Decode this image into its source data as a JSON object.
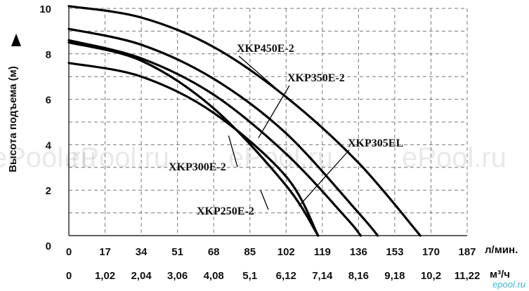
{
  "chart_data": {
    "type": "line",
    "title": "",
    "ylabel": "Высота подъема (м)",
    "xlabel": "",
    "x_unit_primary": "л/мин.",
    "x_unit_secondary": "м³/ч",
    "xlim": [
      0,
      187
    ],
    "ylim": [
      0,
      10
    ],
    "y_ticks": [
      "0",
      "2",
      "4",
      "6",
      "8",
      "10"
    ],
    "x_ticks_primary": [
      "0",
      "17",
      "34",
      "51",
      "68",
      "85",
      "102",
      "119",
      "136",
      "153",
      "170",
      "187"
    ],
    "x_ticks_secondary": [
      "0",
      "1,02",
      "2,04",
      "3,06",
      "4,08",
      "5,1",
      "6,12",
      "7,14",
      "8,16",
      "9,18",
      "10,2",
      "11,22"
    ],
    "grid": true,
    "series": [
      {
        "name": "XKP450E-2",
        "x": [
          0,
          34,
          68,
          102,
          136,
          165
        ],
        "y": [
          10.1,
          9.6,
          8.3,
          6.1,
          3.2,
          0
        ]
      },
      {
        "name": "XKP350E-2",
        "x": [
          0,
          34,
          68,
          102,
          136,
          145
        ],
        "y": [
          9.1,
          8.4,
          6.9,
          4.5,
          1.0,
          0
        ]
      },
      {
        "name": "XKP305EL",
        "x": [
          0,
          34,
          68,
          102,
          130,
          137
        ],
        "y": [
          8.6,
          7.8,
          6.2,
          3.6,
          0.8,
          0
        ]
      },
      {
        "name": "XKP300E-2",
        "x": [
          0,
          34,
          68,
          102,
          117
        ],
        "y": [
          8.5,
          7.7,
          5.6,
          2.2,
          0
        ]
      },
      {
        "name": "XKP250E-2",
        "x": [
          0,
          34,
          68,
          102,
          117
        ],
        "y": [
          7.6,
          7.0,
          5.4,
          2.6,
          0
        ]
      }
    ],
    "annotations": [
      {
        "text": "XKP450E-2",
        "series": "XKP450E-2"
      },
      {
        "text": "XKP350E-2",
        "series": "XKP350E-2"
      },
      {
        "text": "XKP305EL",
        "series": "XKP305EL"
      },
      {
        "text": "XKP300E-2",
        "series": "XKP300E-2"
      },
      {
        "text": "XKP250E-2",
        "series": "XKP250E-2"
      }
    ]
  },
  "watermarks": [
    "ePool.ru",
    "ePool.ru",
    "ePool.ru",
    "ePool.ru"
  ],
  "site_mark": "epool.ru"
}
